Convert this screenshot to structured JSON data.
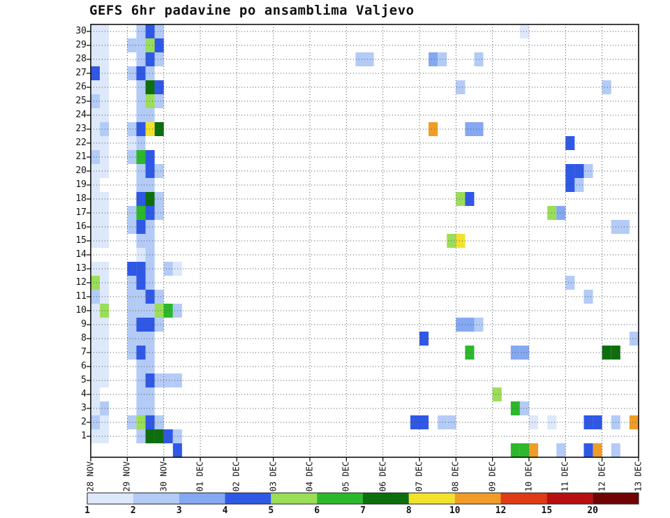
{
  "title": "GEFS 6hr padavine po ansamblima Valjevo",
  "chart_data": {
    "type": "heatmap",
    "title": "GEFS 6hr padavine po ansamblima Valjevo",
    "x_axis": {
      "labels": [
        "28 NOV",
        "29 NOV",
        "30 NOV",
        "01 DEC",
        "02 DEC",
        "03 DEC",
        "04 DEC",
        "05 DEC",
        "06 DEC",
        "07 DEC",
        "08 DEC",
        "09 DEC",
        "10 DEC",
        "11 DEC",
        "12 DEC",
        "13 DEC"
      ],
      "slots_per_day": 4,
      "grid": "dotted"
    },
    "y_axis": {
      "labels": [
        "30",
        "29",
        "28",
        "27",
        "26",
        "25",
        "24",
        "23",
        "22",
        "21",
        "20",
        "19",
        "18",
        "17",
        "16",
        "15",
        "14",
        "13",
        "12",
        "11",
        "10",
        "9",
        "8",
        "7",
        "6",
        "5",
        "4",
        "3",
        "2",
        "1"
      ],
      "min": 1,
      "max": 30,
      "grid": "dotted"
    },
    "colorbar": {
      "tick_labels": [
        "1",
        "2",
        "3",
        "4",
        "5",
        "6",
        "7",
        "8",
        "10",
        "12",
        "15",
        "20"
      ],
      "colors": [
        "#dde8fb",
        "#b3cbf6",
        "#85a8f2",
        "#2f58e6",
        "#9ade57",
        "#2cb82c",
        "#0d6e0d",
        "#f2e22c",
        "#f09c28",
        "#df3b17",
        "#b81010",
        "#700404"
      ],
      "units": "mm/6hr"
    },
    "cells_format": [
      "member",
      "slot_6hr_from_28NOV00Z",
      "color_level_1_to_12"
    ],
    "cells": [
      [
        30,
        0,
        1
      ],
      [
        30,
        1,
        1
      ],
      [
        30,
        5,
        2
      ],
      [
        30,
        6,
        4
      ],
      [
        30,
        7,
        2
      ],
      [
        30,
        47,
        1
      ],
      [
        29,
        0,
        1
      ],
      [
        29,
        1,
        1
      ],
      [
        29,
        4,
        2
      ],
      [
        29,
        5,
        2
      ],
      [
        29,
        6,
        5
      ],
      [
        29,
        7,
        4
      ],
      [
        28,
        0,
        1
      ],
      [
        28,
        1,
        1
      ],
      [
        28,
        5,
        2
      ],
      [
        28,
        6,
        4
      ],
      [
        28,
        7,
        2
      ],
      [
        28,
        29,
        2
      ],
      [
        28,
        30,
        2
      ],
      [
        28,
        37,
        3
      ],
      [
        28,
        38,
        2
      ],
      [
        28,
        42,
        2
      ],
      [
        27,
        0,
        4
      ],
      [
        27,
        1,
        1
      ],
      [
        27,
        4,
        2
      ],
      [
        27,
        5,
        4
      ],
      [
        27,
        6,
        2
      ],
      [
        26,
        0,
        1
      ],
      [
        26,
        1,
        1
      ],
      [
        26,
        5,
        2
      ],
      [
        26,
        6,
        7
      ],
      [
        26,
        7,
        4
      ],
      [
        26,
        40,
        2
      ],
      [
        26,
        56,
        2
      ],
      [
        25,
        0,
        2
      ],
      [
        25,
        1,
        1
      ],
      [
        25,
        5,
        2
      ],
      [
        25,
        6,
        5
      ],
      [
        25,
        7,
        2
      ],
      [
        24,
        0,
        1
      ],
      [
        24,
        1,
        1
      ],
      [
        24,
        5,
        2
      ],
      [
        24,
        6,
        2
      ],
      [
        23,
        0,
        1
      ],
      [
        23,
        1,
        2
      ],
      [
        23,
        4,
        2
      ],
      [
        23,
        5,
        4
      ],
      [
        23,
        6,
        8
      ],
      [
        23,
        7,
        7
      ],
      [
        23,
        37,
        9
      ],
      [
        23,
        41,
        3
      ],
      [
        23,
        42,
        3
      ],
      [
        22,
        0,
        1
      ],
      [
        22,
        1,
        1
      ],
      [
        22,
        4,
        1
      ],
      [
        22,
        5,
        2
      ],
      [
        22,
        52,
        4
      ],
      [
        21,
        0,
        2
      ],
      [
        21,
        1,
        1
      ],
      [
        21,
        4,
        2
      ],
      [
        21,
        5,
        6
      ],
      [
        21,
        6,
        4
      ],
      [
        20,
        0,
        1
      ],
      [
        20,
        1,
        1
      ],
      [
        20,
        5,
        2
      ],
      [
        20,
        6,
        4
      ],
      [
        20,
        7,
        2
      ],
      [
        20,
        52,
        4
      ],
      [
        20,
        53,
        4
      ],
      [
        20,
        54,
        2
      ],
      [
        19,
        0,
        1
      ],
      [
        19,
        5,
        2
      ],
      [
        19,
        6,
        2
      ],
      [
        19,
        52,
        4
      ],
      [
        19,
        53,
        2
      ],
      [
        18,
        0,
        1
      ],
      [
        18,
        1,
        1
      ],
      [
        18,
        5,
        4
      ],
      [
        18,
        6,
        7
      ],
      [
        18,
        7,
        2
      ],
      [
        18,
        40,
        5
      ],
      [
        18,
        41,
        4
      ],
      [
        17,
        0,
        1
      ],
      [
        17,
        1,
        1
      ],
      [
        17,
        4,
        2
      ],
      [
        17,
        5,
        6
      ],
      [
        17,
        6,
        4
      ],
      [
        17,
        7,
        2
      ],
      [
        17,
        50,
        5
      ],
      [
        17,
        51,
        3
      ],
      [
        16,
        0,
        1
      ],
      [
        16,
        1,
        1
      ],
      [
        16,
        4,
        2
      ],
      [
        16,
        5,
        4
      ],
      [
        16,
        6,
        2
      ],
      [
        16,
        57,
        2
      ],
      [
        16,
        58,
        2
      ],
      [
        15,
        0,
        1
      ],
      [
        15,
        1,
        1
      ],
      [
        15,
        5,
        2
      ],
      [
        15,
        6,
        2
      ],
      [
        15,
        39,
        5
      ],
      [
        15,
        40,
        8
      ],
      [
        14,
        5,
        1
      ],
      [
        14,
        6,
        2
      ],
      [
        13,
        0,
        1
      ],
      [
        13,
        1,
        1
      ],
      [
        13,
        4,
        4
      ],
      [
        13,
        5,
        4
      ],
      [
        13,
        6,
        2
      ],
      [
        13,
        8,
        2
      ],
      [
        13,
        9,
        1
      ],
      [
        12,
        0,
        5
      ],
      [
        12,
        1,
        1
      ],
      [
        12,
        4,
        2
      ],
      [
        12,
        5,
        4
      ],
      [
        12,
        6,
        2
      ],
      [
        12,
        52,
        2
      ],
      [
        11,
        0,
        2
      ],
      [
        11,
        1,
        1
      ],
      [
        11,
        4,
        2
      ],
      [
        11,
        5,
        2
      ],
      [
        11,
        6,
        4
      ],
      [
        11,
        7,
        2
      ],
      [
        11,
        54,
        2
      ],
      [
        10,
        0,
        1
      ],
      [
        10,
        1,
        5
      ],
      [
        10,
        4,
        2
      ],
      [
        10,
        5,
        2
      ],
      [
        10,
        6,
        2
      ],
      [
        10,
        7,
        5
      ],
      [
        10,
        8,
        6
      ],
      [
        10,
        9,
        2
      ],
      [
        9,
        0,
        1
      ],
      [
        9,
        1,
        1
      ],
      [
        9,
        4,
        2
      ],
      [
        9,
        5,
        4
      ],
      [
        9,
        6,
        4
      ],
      [
        9,
        7,
        2
      ],
      [
        9,
        40,
        3
      ],
      [
        9,
        41,
        3
      ],
      [
        9,
        42,
        2
      ],
      [
        8,
        0,
        1
      ],
      [
        8,
        1,
        1
      ],
      [
        8,
        4,
        2
      ],
      [
        8,
        5,
        2
      ],
      [
        8,
        6,
        2
      ],
      [
        8,
        36,
        4
      ],
      [
        8,
        59,
        2
      ],
      [
        7,
        0,
        1
      ],
      [
        7,
        1,
        1
      ],
      [
        7,
        4,
        2
      ],
      [
        7,
        5,
        4
      ],
      [
        7,
        6,
        2
      ],
      [
        7,
        41,
        6
      ],
      [
        7,
        46,
        3
      ],
      [
        7,
        47,
        3
      ],
      [
        7,
        56,
        7
      ],
      [
        7,
        57,
        7
      ],
      [
        6,
        0,
        1
      ],
      [
        6,
        1,
        1
      ],
      [
        6,
        5,
        2
      ],
      [
        6,
        6,
        2
      ],
      [
        5,
        0,
        1
      ],
      [
        5,
        1,
        1
      ],
      [
        5,
        5,
        2
      ],
      [
        5,
        6,
        4
      ],
      [
        5,
        7,
        2
      ],
      [
        5,
        8,
        2
      ],
      [
        5,
        9,
        2
      ],
      [
        4,
        0,
        1
      ],
      [
        4,
        5,
        2
      ],
      [
        4,
        6,
        2
      ],
      [
        4,
        44,
        5
      ],
      [
        3,
        0,
        1
      ],
      [
        3,
        1,
        2
      ],
      [
        3,
        5,
        2
      ],
      [
        3,
        6,
        2
      ],
      [
        3,
        46,
        6
      ],
      [
        3,
        47,
        2
      ],
      [
        2,
        0,
        2
      ],
      [
        2,
        1,
        1
      ],
      [
        2,
        4,
        2
      ],
      [
        2,
        5,
        5
      ],
      [
        2,
        6,
        4
      ],
      [
        2,
        7,
        2
      ],
      [
        2,
        35,
        4
      ],
      [
        2,
        36,
        4
      ],
      [
        2,
        38,
        2
      ],
      [
        2,
        39,
        2
      ],
      [
        2,
        48,
        1
      ],
      [
        2,
        50,
        1
      ],
      [
        2,
        54,
        4
      ],
      [
        2,
        55,
        4
      ],
      [
        2,
        57,
        2
      ],
      [
        2,
        59,
        9
      ],
      [
        1,
        0,
        1
      ],
      [
        1,
        1,
        1
      ],
      [
        1,
        5,
        2
      ],
      [
        1,
        6,
        7
      ],
      [
        1,
        7,
        7
      ],
      [
        1,
        8,
        4
      ],
      [
        1,
        9,
        2
      ],
      [
        0,
        9,
        4
      ],
      [
        0,
        46,
        6
      ],
      [
        0,
        47,
        6
      ],
      [
        0,
        48,
        9
      ],
      [
        0,
        51,
        2
      ],
      [
        0,
        54,
        4
      ],
      [
        0,
        55,
        9
      ],
      [
        0,
        57,
        2
      ]
    ]
  }
}
